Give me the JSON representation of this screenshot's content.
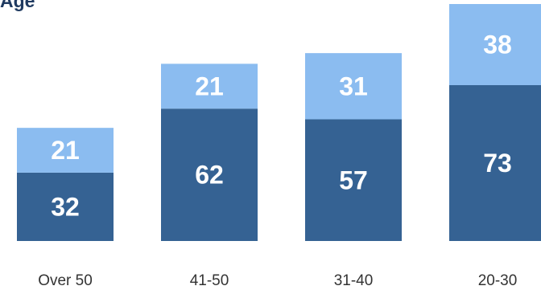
{
  "chart_data": {
    "type": "bar",
    "stacked": true,
    "title": "Age",
    "categories": [
      "Over 50",
      "41-50",
      "31-40",
      "20-30"
    ],
    "series": [
      {
        "values": [
          32,
          62,
          57,
          73
        ],
        "color": "#356293"
      },
      {
        "values": [
          21,
          21,
          31,
          38
        ],
        "color": "#8bbcf0"
      }
    ],
    "ylim": [
      0,
      111
    ],
    "grid": false,
    "legend": "none"
  }
}
